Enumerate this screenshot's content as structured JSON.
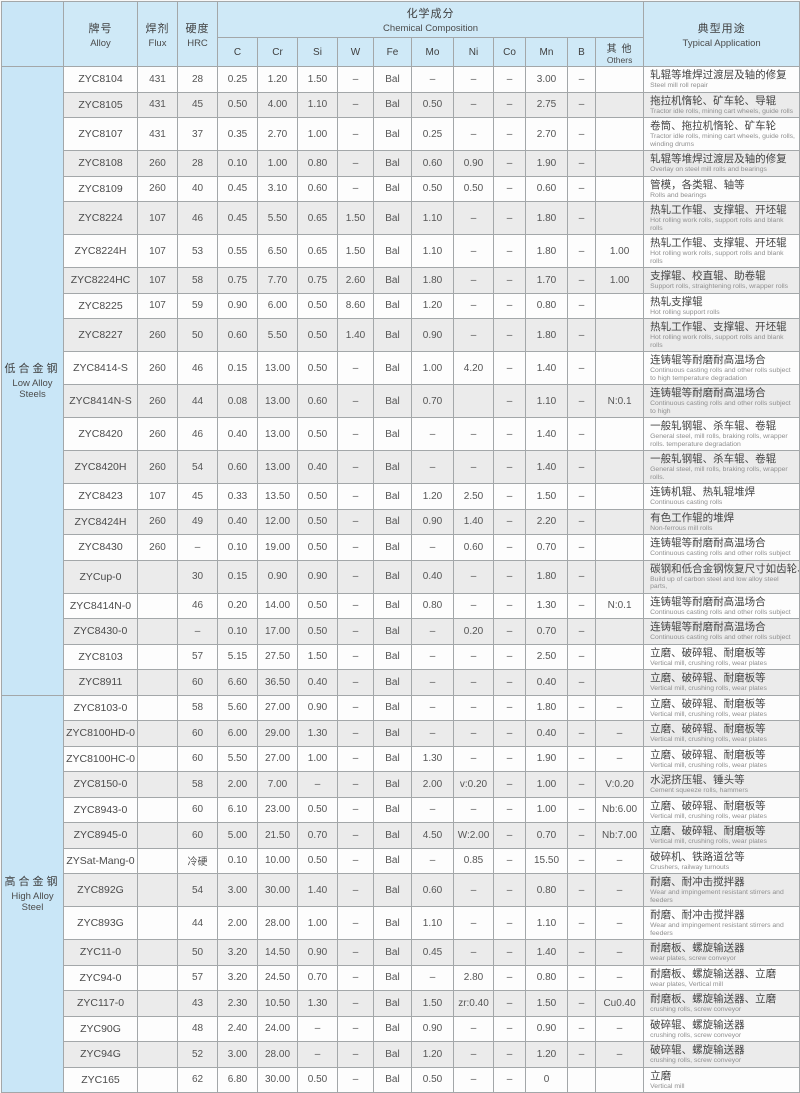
{
  "header": {
    "alloy_zh": "牌号",
    "alloy_en": "Alloy",
    "flux_zh": "焊剂",
    "flux_en": "Flux",
    "hrc_zh": "硬度",
    "hrc_en": "HRC",
    "chem_zh": "化学成分",
    "chem_en": "Chemical Composition",
    "app_zh": "典型用途",
    "app_en": "Typical Application",
    "elements": [
      "C",
      "Cr",
      "Si",
      "W",
      "Fe",
      "Mo",
      "Ni",
      "Co",
      "Mn",
      "B"
    ],
    "others_zh": "其 他",
    "others_en": "Others"
  },
  "colors": {
    "header_bg": "#cfe9f7",
    "section_bg": "#c9e6f7",
    "row_alt_bg": "#ebebeb",
    "row_bg": "#fdfdfd",
    "grid": "#a3a7a9"
  },
  "sections": [
    {
      "label_zh": "低合金钢",
      "label_en": "Low Alloy Steels",
      "rows": [
        {
          "alloy": "ZYC8104",
          "flux": "431",
          "hrc": "28",
          "vals": [
            "0.25",
            "1.20",
            "1.50",
            "–",
            "Bal",
            "–",
            "–",
            "–",
            "3.00",
            "–",
            ""
          ],
          "app_zh": "轧辊等堆焊过渡层及轴的修复",
          "app_en": "Steel mill roll repair"
        },
        {
          "alloy": "ZYC8105",
          "flux": "431",
          "hrc": "45",
          "vals": [
            "0.50",
            "4.00",
            "1.10",
            "–",
            "Bal",
            "0.50",
            "–",
            "–",
            "2.75",
            "–",
            ""
          ],
          "app_zh": "拖拉机惰轮、矿车轮、导辊",
          "app_en": "Tractor idle rolls, mining cart wheels, guide rolls"
        },
        {
          "alloy": "ZYC8107",
          "flux": "431",
          "hrc": "37",
          "vals": [
            "0.35",
            "2.70",
            "1.00",
            "–",
            "Bal",
            "0.25",
            "–",
            "–",
            "2.70",
            "–",
            ""
          ],
          "app_zh": "卷筒、拖拉机惰轮、矿车轮",
          "app_en": "Tractor idle rolls, mining cart wheels, guide rolls, winding drums"
        },
        {
          "alloy": "ZYC8108",
          "flux": "260",
          "hrc": "28",
          "vals": [
            "0.10",
            "1.00",
            "0.80",
            "–",
            "Bal",
            "0.60",
            "0.90",
            "–",
            "1.90",
            "–",
            ""
          ],
          "app_zh": "轧辊等堆焊过渡层及轴的修复",
          "app_en": "Overlay on steel mill rolls and bearings"
        },
        {
          "alloy": "ZYC8109",
          "flux": "260",
          "hrc": "40",
          "vals": [
            "0.45",
            "3.10",
            "0.60",
            "–",
            "Bal",
            "0.50",
            "0.50",
            "–",
            "0.60",
            "–",
            ""
          ],
          "app_zh": "管模，各类辊、轴等",
          "app_en": "Rolls and bearings"
        },
        {
          "alloy": "ZYC8224",
          "flux": "107",
          "hrc": "46",
          "vals": [
            "0.45",
            "5.50",
            "0.65",
            "1.50",
            "Bal",
            "1.10",
            "–",
            "–",
            "1.80",
            "–",
            ""
          ],
          "app_zh": "热轧工作辊、支撑辊、开坯辊",
          "app_en": "Hot rolling work rolls, support rolls and blank rolls"
        },
        {
          "alloy": "ZYC8224H",
          "flux": "107",
          "hrc": "53",
          "vals": [
            "0.55",
            "6.50",
            "0.65",
            "1.50",
            "Bal",
            "1.10",
            "–",
            "–",
            "1.80",
            "–",
            "1.00"
          ],
          "app_zh": "热轧工作辊、支撑辊、开坯辊",
          "app_en": "Hot rolling work rolls, support rolls and blank rolls"
        },
        {
          "alloy": "ZYC8224HC",
          "flux": "107",
          "hrc": "58",
          "vals": [
            "0.75",
            "7.70",
            "0.75",
            "2.60",
            "Bal",
            "1.80",
            "–",
            "–",
            "1.70",
            "–",
            "1.00"
          ],
          "app_zh": "支撑辊、校直辊、助卷辊",
          "app_en": "Support rolls, straightening rolls, wrapper rolls"
        },
        {
          "alloy": "ZYC8225",
          "flux": "107",
          "hrc": "59",
          "vals": [
            "0.90",
            "6.00",
            "0.50",
            "8.60",
            "Bal",
            "1.20",
            "–",
            "–",
            "0.80",
            "–",
            ""
          ],
          "app_zh": "热轧支撑辊",
          "app_en": "Hot rolling support rolls"
        },
        {
          "alloy": "ZYC8227",
          "flux": "260",
          "hrc": "50",
          "vals": [
            "0.60",
            "5.50",
            "0.50",
            "1.40",
            "Bal",
            "0.90",
            "–",
            "–",
            "1.80",
            "–",
            ""
          ],
          "app_zh": "热轧工作辊、支撑辊、开坯辊",
          "app_en": "Hot rolling work rolls, support rolls and blank rolls"
        },
        {
          "alloy": "ZYC8414-S",
          "flux": "260",
          "hrc": "46",
          "vals": [
            "0.15",
            "13.00",
            "0.50",
            "–",
            "Bal",
            "1.00",
            "4.20",
            "–",
            "1.40",
            "–",
            ""
          ],
          "app_zh": "连铸辊等耐磨耐高温场合",
          "app_en": "Continuous casting rolls and other rolls subject to high temperature degradation"
        },
        {
          "alloy": "ZYC8414N-S",
          "flux": "260",
          "hrc": "44",
          "vals": [
            "0.08",
            "13.00",
            "0.60",
            "–",
            "Bal",
            "0.70",
            "",
            "–",
            "1.10",
            "–",
            "N:0.1"
          ],
          "app_zh": "连铸辊等耐磨耐高温场合",
          "app_en": "Continuous casting rolls and other rolls subject to high"
        },
        {
          "alloy": "ZYC8420",
          "flux": "260",
          "hrc": "46",
          "vals": [
            "0.40",
            "13.00",
            "0.50",
            "–",
            "Bal",
            "–",
            "–",
            "–",
            "1.40",
            "–",
            ""
          ],
          "app_zh": "一般轧钢辊、杀车辊、卷辊",
          "app_en": "General steel, mill rolls, braking rolls, wrapper rolls. temperature degradation"
        },
        {
          "alloy": "ZYC8420H",
          "flux": "260",
          "hrc": "54",
          "vals": [
            "0.60",
            "13.00",
            "0.40",
            "–",
            "Bal",
            "–",
            "–",
            "–",
            "1.40",
            "–",
            ""
          ],
          "app_zh": "一般轧钢辊、杀车辊、卷辊",
          "app_en": "General steel, mill rolls, braking rolls, wrapper rolls."
        },
        {
          "alloy": "ZYC8423",
          "flux": "107",
          "hrc": "45",
          "vals": [
            "0.33",
            "13.50",
            "0.50",
            "–",
            "Bal",
            "1.20",
            "2.50",
            "–",
            "1.50",
            "–",
            ""
          ],
          "app_zh": "连铸机辊、热轧辊堆焊",
          "app_en": "Continuous casting rolls"
        },
        {
          "alloy": "ZYC8424H",
          "flux": "260",
          "hrc": "49",
          "vals": [
            "0.40",
            "12.00",
            "0.50",
            "–",
            "Bal",
            "0.90",
            "1.40",
            "–",
            "2.20",
            "–",
            ""
          ],
          "app_zh": "有色工作辊的堆焊",
          "app_en": "Non-ferrous mill rolls"
        },
        {
          "alloy": "ZYC8430",
          "flux": "260",
          "hrc": "–",
          "vals": [
            "0.10",
            "19.00",
            "0.50",
            "–",
            "Bal",
            "–",
            "0.60",
            "–",
            "0.70",
            "–",
            ""
          ],
          "app_zh": "连铸辊等耐磨耐高温场合",
          "app_en": "Continuous casting rolls and other rolls subject"
        },
        {
          "alloy": "ZYCup-0",
          "flux": "",
          "hrc": "30",
          "vals": [
            "0.15",
            "0.90",
            "0.90",
            "–",
            "Bal",
            "0.40",
            "–",
            "–",
            "1.80",
            "–",
            ""
          ],
          "app_zh": "碳钢和低合金钢恢复尺寸如齿轮、",
          "app_en": "Build up of carbon steel and low alloy steel parts,"
        },
        {
          "alloy": "ZYC8414N-0",
          "flux": "",
          "hrc": "46",
          "vals": [
            "0.20",
            "14.00",
            "0.50",
            "–",
            "Bal",
            "0.80",
            "–",
            "–",
            "1.30",
            "–",
            "N:0.1"
          ],
          "app_zh": "连铸辊等耐磨耐高温场合",
          "app_en": "Continuous casting rolls and other rolls subject"
        },
        {
          "alloy": "ZYC8430-0",
          "flux": "",
          "hrc": "–",
          "vals": [
            "0.10",
            "17.00",
            "0.50",
            "–",
            "Bal",
            "–",
            "0.20",
            "–",
            "0.70",
            "–",
            ""
          ],
          "app_zh": "连铸辊等耐磨耐高温场合",
          "app_en": "Continuous casting rolls and other rolls subject"
        },
        {
          "alloy": "ZYC8103",
          "flux": "",
          "hrc": "57",
          "vals": [
            "5.15",
            "27.50",
            "1.50",
            "–",
            "Bal",
            "–",
            "–",
            "–",
            "2.50",
            "–",
            ""
          ],
          "app_zh": "立磨、破碎辊、耐磨板等",
          "app_en": "Vertical mill, crushing rolls, wear plates"
        },
        {
          "alloy": "ZYC8911",
          "flux": "",
          "hrc": "60",
          "vals": [
            "6.60",
            "36.50",
            "0.40",
            "–",
            "Bal",
            "–",
            "–",
            "–",
            "0.40",
            "–",
            ""
          ],
          "app_zh": "立磨、破碎辊、耐磨板等",
          "app_en": "Vertical mill, crushing rolls, wear plates"
        }
      ]
    },
    {
      "label_zh": "高合金钢",
      "label_en": "High Alloy Steel",
      "rows": [
        {
          "alloy": "ZYC8103-0",
          "flux": "",
          "hrc": "58",
          "vals": [
            "5.60",
            "27.00",
            "0.90",
            "–",
            "Bal",
            "–",
            "–",
            "–",
            "1.80",
            "–",
            "–"
          ],
          "app_zh": "立磨、破碎辊、耐磨板等",
          "app_en": "Vertical mill, crushing rolls, wear plates"
        },
        {
          "alloy": "ZYC8100HD-0",
          "flux": "",
          "hrc": "60",
          "vals": [
            "6.00",
            "29.00",
            "1.30",
            "–",
            "Bal",
            "–",
            "–",
            "–",
            "0.40",
            "–",
            "–"
          ],
          "app_zh": "立磨、破碎辊、耐磨板等",
          "app_en": "Vertical mill, crushing rolls, wear plates"
        },
        {
          "alloy": "ZYC8100HC-0",
          "flux": "",
          "hrc": "60",
          "vals": [
            "5.50",
            "27.00",
            "1.00",
            "–",
            "Bal",
            "1.30",
            "–",
            "–",
            "1.90",
            "–",
            "–"
          ],
          "app_zh": "立磨、破碎辊、耐磨板等",
          "app_en": "Vertical mill, crushing rolls, wear plates"
        },
        {
          "alloy": "ZYC8150-0",
          "flux": "",
          "hrc": "58",
          "vals": [
            "2.00",
            "7.00",
            "–",
            "–",
            "Bal",
            "2.00",
            "v:0.20",
            "–",
            "1.00",
            "–",
            "V:0.20"
          ],
          "app_zh": "水泥挤压辊、锤头等",
          "app_en": "Cement squeeze rolls, hammers"
        },
        {
          "alloy": "ZYC8943-0",
          "flux": "",
          "hrc": "60",
          "vals": [
            "6.10",
            "23.00",
            "0.50",
            "–",
            "Bal",
            "–",
            "–",
            "–",
            "1.00",
            "–",
            "Nb:6.00"
          ],
          "app_zh": "立磨、破碎辊、耐磨板等",
          "app_en": "Vertical mill, crushing rolls, wear plates"
        },
        {
          "alloy": "ZYC8945-0",
          "flux": "",
          "hrc": "60",
          "vals": [
            "5.00",
            "21.50",
            "0.70",
            "–",
            "Bal",
            "4.50",
            "W:2.00",
            "–",
            "0.70",
            "–",
            "Nb:7.00"
          ],
          "app_zh": "立磨、破碎辊、耐磨板等",
          "app_en": "Vertical mill, crushing rolls, wear plates"
        },
        {
          "alloy": "ZYSat-Mang-0",
          "flux": "",
          "hrc": "冷硬",
          "vals": [
            "0.10",
            "10.00",
            "0.50",
            "–",
            "Bal",
            "–",
            "0.85",
            "–",
            "15.50",
            "–",
            "–"
          ],
          "app_zh": "破碎机、铁路道岔等",
          "app_en": "Crushers, railway turnouts"
        },
        {
          "alloy": "ZYC892G",
          "flux": "",
          "hrc": "54",
          "vals": [
            "3.00",
            "30.00",
            "1.40",
            "–",
            "Bal",
            "0.60",
            "–",
            "–",
            "0.80",
            "–",
            "–"
          ],
          "app_zh": "耐磨、耐冲击搅拌器",
          "app_en": "Wear and impingement resistant stirrers and feeders"
        },
        {
          "alloy": "ZYC893G",
          "flux": "",
          "hrc": "44",
          "vals": [
            "2.00",
            "28.00",
            "1.00",
            "–",
            "Bal",
            "1.10",
            "–",
            "–",
            "1.10",
            "–",
            "–"
          ],
          "app_zh": "耐磨、耐冲击搅拌器",
          "app_en": "Wear and impingement resistant stirrers and feeders"
        },
        {
          "alloy": "ZYC11-0",
          "flux": "",
          "hrc": "50",
          "vals": [
            "3.20",
            "14.50",
            "0.90",
            "–",
            "Bal",
            "0.45",
            "–",
            "–",
            "1.40",
            "–",
            "–"
          ],
          "app_zh": "耐磨板、螺旋输送器",
          "app_en": "wear plates, screw conveyor"
        },
        {
          "alloy": "ZYC94-0",
          "flux": "",
          "hrc": "57",
          "vals": [
            "3.20",
            "24.50",
            "0.70",
            "–",
            "Bal",
            "–",
            "2.80",
            "–",
            "0.80",
            "–",
            "–"
          ],
          "app_zh": "耐磨板、螺旋输送器、立磨",
          "app_en": "wear plates, Vertical mill"
        },
        {
          "alloy": "ZYC117-0",
          "flux": "",
          "hrc": "43",
          "vals": [
            "2.30",
            "10.50",
            "1.30",
            "–",
            "Bal",
            "1.50",
            "zr:0.40",
            "–",
            "1.50",
            "–",
            "Cu0.40"
          ],
          "app_zh": "耐磨板、螺旋输送器、立磨",
          "app_en": "crushing rolls, screw conveyor"
        },
        {
          "alloy": "ZYC90G",
          "flux": "",
          "hrc": "48",
          "vals": [
            "2.40",
            "24.00",
            "–",
            "–",
            "Bal",
            "0.90",
            "–",
            "–",
            "0.90",
            "–",
            "–"
          ],
          "app_zh": "破碎辊、螺旋输送器",
          "app_en": "crushing rolls, screw conveyor"
        },
        {
          "alloy": "ZYC94G",
          "flux": "",
          "hrc": "52",
          "vals": [
            "3.00",
            "28.00",
            "–",
            "–",
            "Bal",
            "1.20",
            "–",
            "–",
            "1.20",
            "–",
            "–"
          ],
          "app_zh": "破碎辊、螺旋输送器",
          "app_en": "crushing rolls, screw conveyor"
        },
        {
          "alloy": "ZYC165",
          "flux": "",
          "hrc": "62",
          "vals": [
            "6.80",
            "30.00",
            "0.50",
            "–",
            "Bal",
            "0.50",
            "–",
            "–",
            "0",
            "",
            ""
          ],
          "app_zh": "立磨",
          "app_en": "Vertical mill"
        }
      ]
    }
  ]
}
